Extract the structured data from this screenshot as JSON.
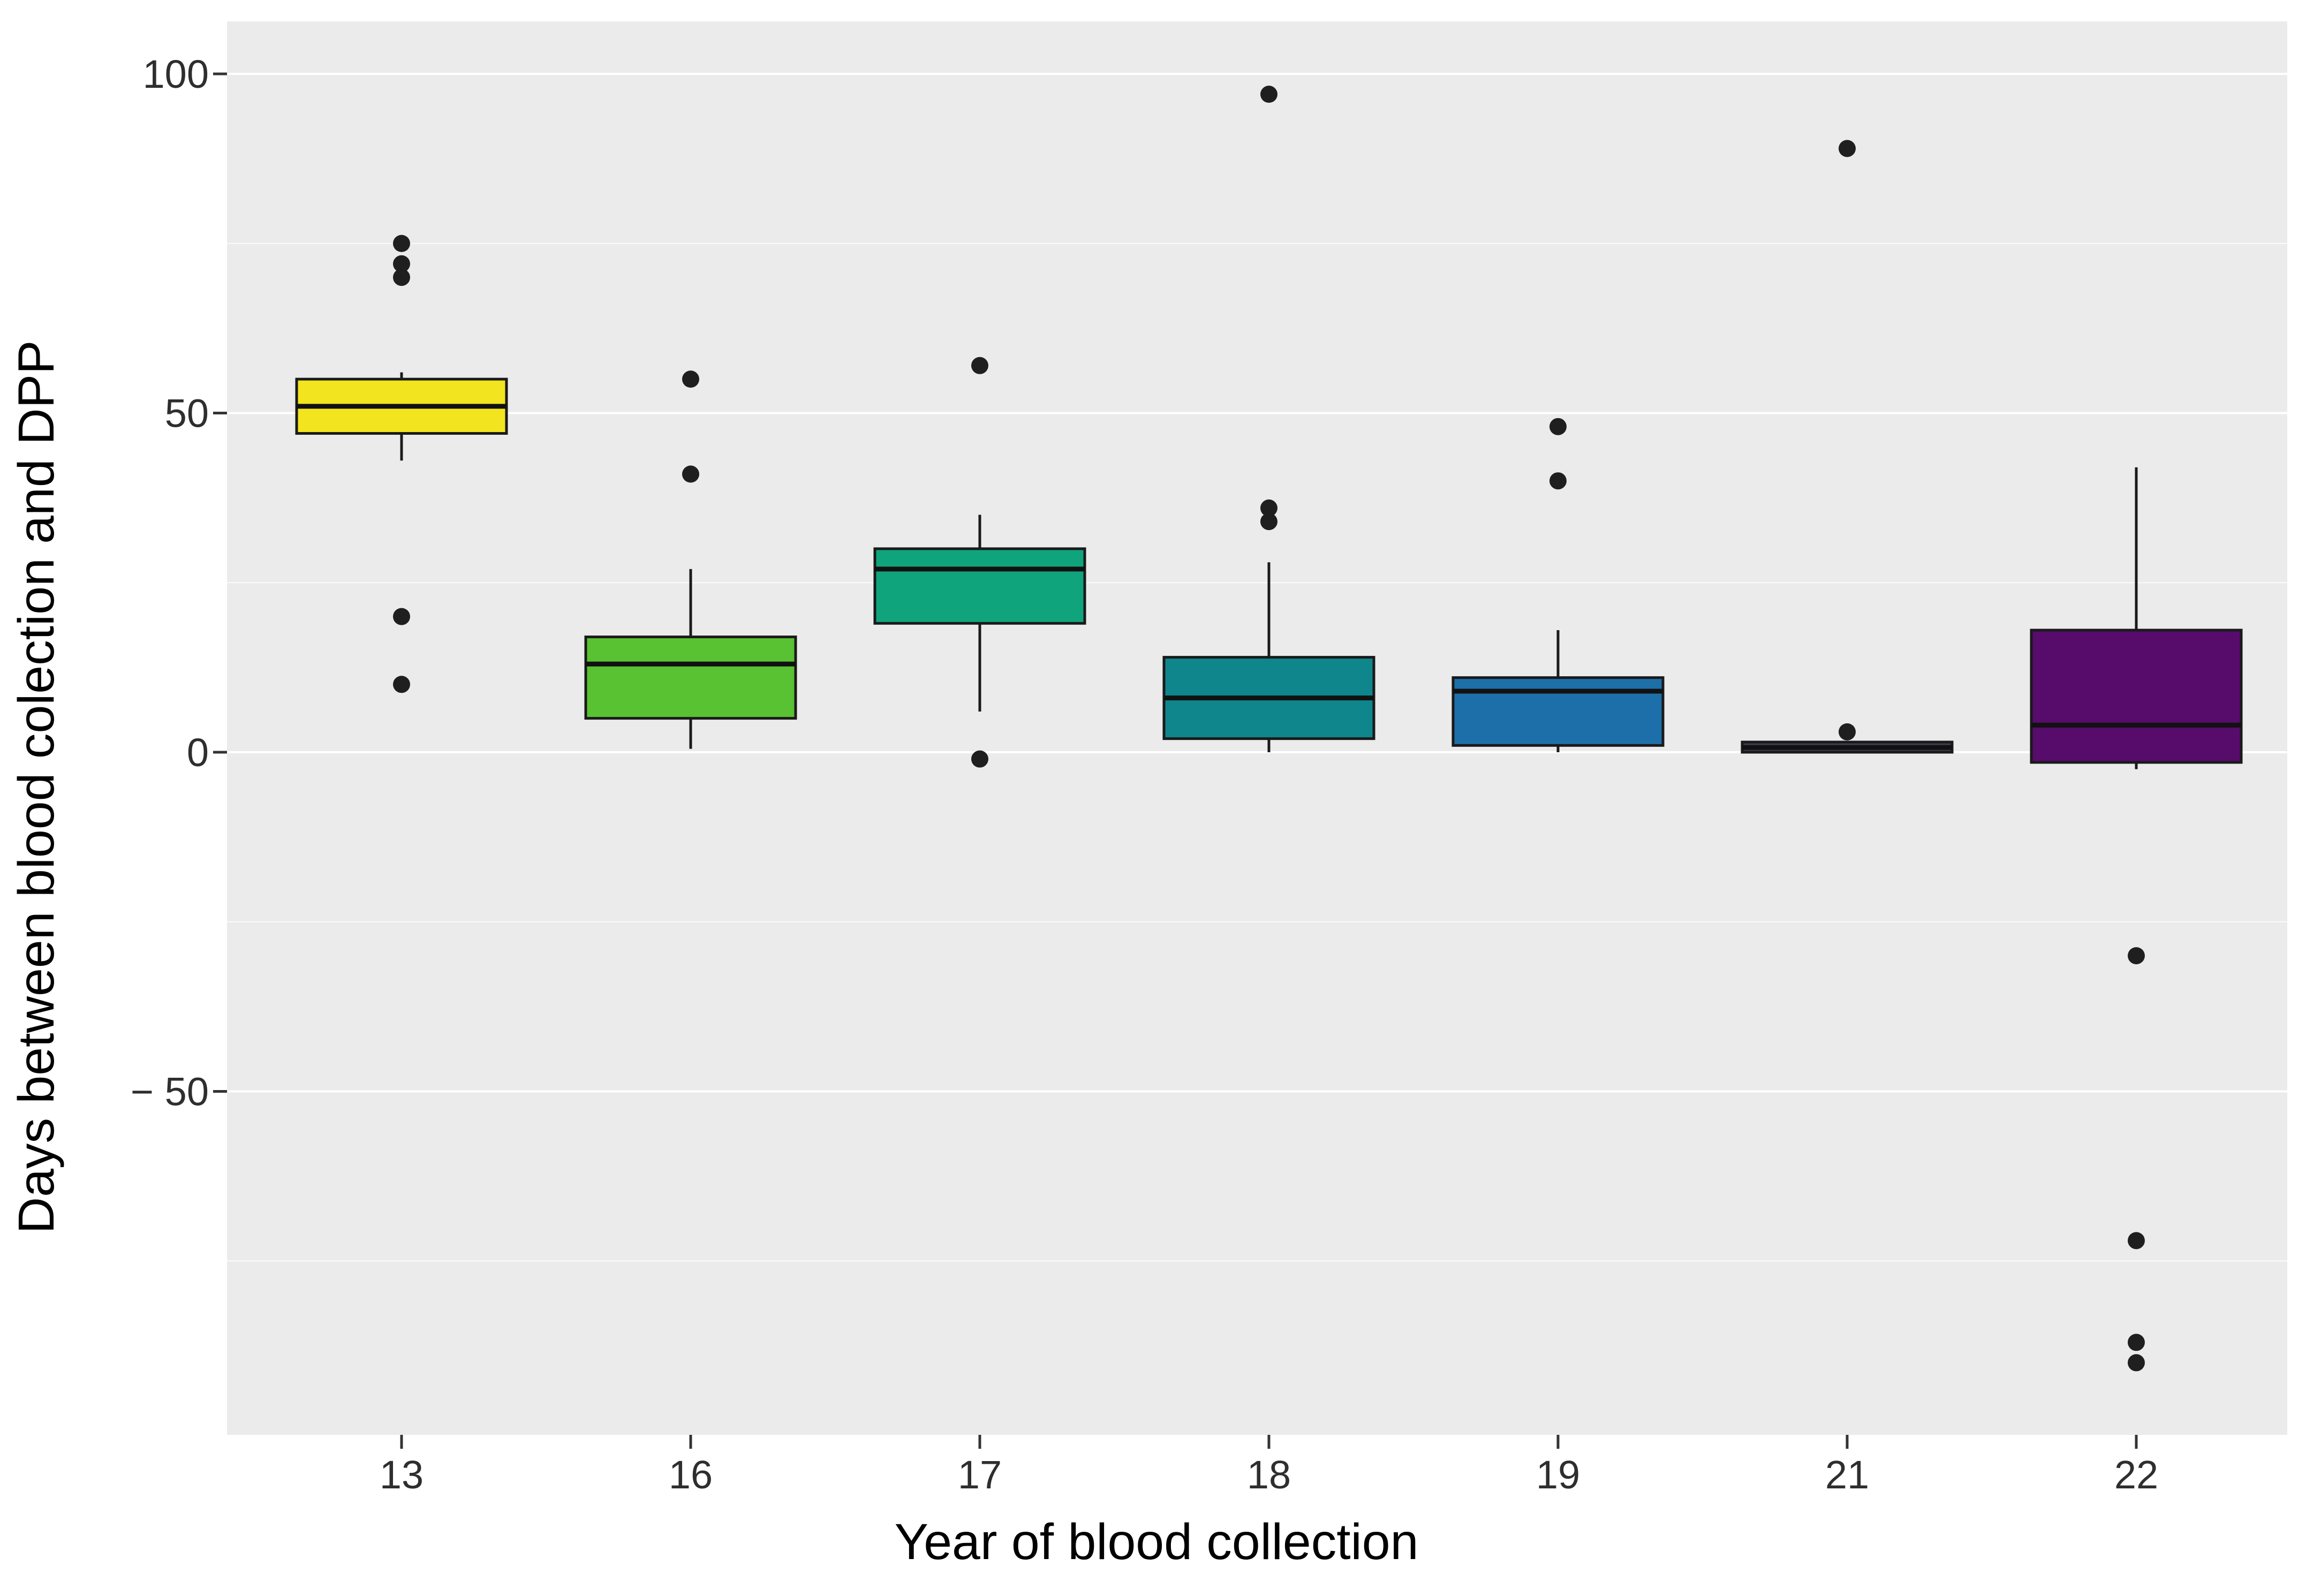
{
  "chart_data": {
    "type": "box",
    "title": "",
    "xlabel": "Year of blood collection",
    "ylabel": "Days between blood colection and DPP",
    "categories": [
      "13",
      "16",
      "17",
      "18",
      "19",
      "21",
      "22"
    ],
    "ylim": [
      -101,
      108
    ],
    "y_major_ticks": [
      100,
      50,
      0,
      -50
    ],
    "y_tick_labels": [
      "100",
      "50",
      "0",
      "− 50"
    ],
    "y_minor_gridlines": [
      75,
      25,
      -25,
      -75
    ],
    "grid": "white major and minor horizontal gridlines on gray panel",
    "legend_position": "none",
    "panel_bg": "#EBEBEB",
    "gridline_color": "#FFFFFF",
    "box_border_color": "#1A1A1A",
    "median_color": "#111111",
    "outlier_color": "#1F1F1F",
    "series": [
      {
        "category": "13",
        "fill": "#F2E41F",
        "min": 43,
        "q1": 47,
        "median": 51,
        "q3": 55,
        "max": 56,
        "outliers": [
          75,
          72,
          70,
          20,
          10
        ]
      },
      {
        "category": "16",
        "fill": "#58C232",
        "min": 0.5,
        "q1": 5,
        "median": 13,
        "q3": 17,
        "max": 27,
        "outliers": [
          55,
          41
        ]
      },
      {
        "category": "17",
        "fill": "#10A47C",
        "min": 6,
        "q1": 19,
        "median": 27,
        "q3": 30,
        "max": 35,
        "outliers": [
          57,
          -1
        ]
      },
      {
        "category": "18",
        "fill": "#0E868B",
        "min": 0,
        "q1": 2,
        "median": 8,
        "q3": 14,
        "max": 28,
        "outliers": [
          97,
          36,
          34
        ]
      },
      {
        "category": "19",
        "fill": "#1D6FA9",
        "min": 0,
        "q1": 1,
        "median": 9,
        "q3": 11,
        "max": 18,
        "outliers": [
          48,
          40
        ]
      },
      {
        "category": "21",
        "fill": "#3F3D52",
        "min": 0,
        "q1": 0,
        "median": 0.7,
        "q3": 1.5,
        "max": 1.5,
        "outliers": [
          89,
          3
        ]
      },
      {
        "category": "22",
        "fill": "#570B6B",
        "min": -2.5,
        "q1": -1.5,
        "median": 4,
        "q3": 18,
        "max": 42,
        "outliers": [
          -30,
          -72,
          -87,
          -90
        ]
      }
    ]
  }
}
